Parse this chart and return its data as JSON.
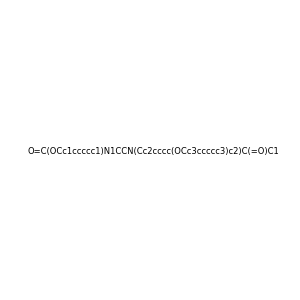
{
  "smiles": "O=C(OCc1ccccc1)N1CCN(Cc2cccc(OCc3ccccc3)c2)C(=O)C1",
  "image_size": 300,
  "background_color": "#e8e8f0"
}
